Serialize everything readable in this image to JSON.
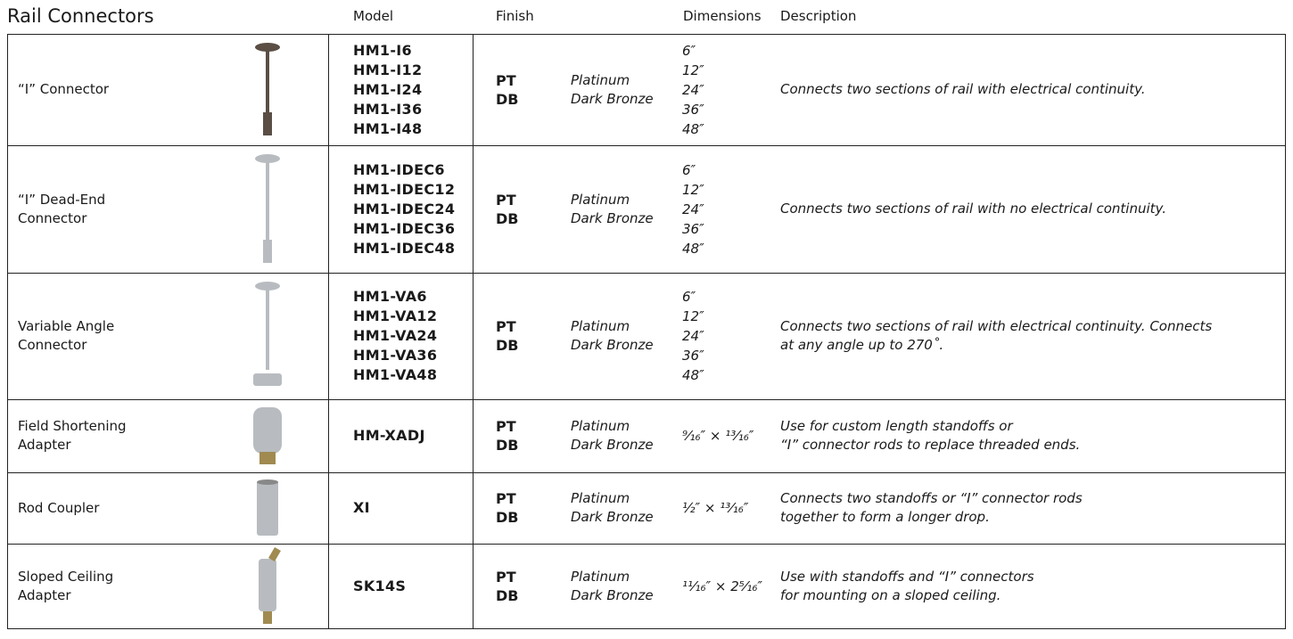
{
  "header": {
    "title": "Rail Connectors",
    "columns": [
      "Model",
      "Finish",
      "Dimensions",
      "Description"
    ]
  },
  "rows": [
    {
      "name": [
        "“I” Connector"
      ],
      "models": [
        "HM1-I6",
        "HM1-I12",
        "HM1-I24",
        "HM1-I36",
        "HM1-I48"
      ],
      "finish_codes": [
        "PT",
        "DB"
      ],
      "finish_names": [
        "Platinum",
        "Dark Bronze"
      ],
      "dimensions": [
        "6″",
        "12″",
        "24″",
        "36″",
        "48″"
      ],
      "description": [
        "Connects two sections of rail with electrical continuity."
      ]
    },
    {
      "name": [
        "“I” Dead-End",
        "Connector"
      ],
      "models": [
        "HM1-IDEC6",
        "HM1-IDEC12",
        "HM1-IDEC24",
        "HM1-IDEC36",
        "HM1-IDEC48"
      ],
      "finish_codes": [
        "PT",
        "DB"
      ],
      "finish_names": [
        "Platinum",
        "Dark Bronze"
      ],
      "dimensions": [
        "6″",
        "12″",
        "24″",
        "36″",
        "48″"
      ],
      "description": [
        "Connects two sections of rail with no electrical continuity."
      ]
    },
    {
      "name": [
        "Variable Angle",
        "Connector"
      ],
      "models": [
        "HM1-VA6",
        "HM1-VA12",
        "HM1-VA24",
        "HM1-VA36",
        "HM1-VA48"
      ],
      "finish_codes": [
        "PT",
        "DB"
      ],
      "finish_names": [
        "Platinum",
        "Dark Bronze"
      ],
      "dimensions": [
        "6″",
        "12″",
        "24″",
        "36″",
        "48″"
      ],
      "description": [
        "Connects two sections of rail with electrical continuity. Connects",
        "at any angle up to 270˚."
      ]
    },
    {
      "name": [
        "Field Shortening",
        "Adapter"
      ],
      "models": [
        "HM-XADJ"
      ],
      "finish_codes": [
        "PT",
        "DB"
      ],
      "finish_names": [
        "Platinum",
        "Dark Bronze"
      ],
      "dimensions": [
        "⁹⁄₁₆″ × ¹³⁄₁₆″"
      ],
      "description": [
        "Use for custom length standoffs or",
        "“I” connector rods to replace threaded ends."
      ]
    },
    {
      "name": [
        "Rod Coupler"
      ],
      "models": [
        "XI"
      ],
      "finish_codes": [
        "PT",
        "DB"
      ],
      "finish_names": [
        "Platinum",
        "Dark Bronze"
      ],
      "dimensions": [
        "½″ × ¹³⁄₁₆″"
      ],
      "description": [
        "Connects two standoffs or “I” connector rods",
        "together to form a longer drop."
      ]
    },
    {
      "name": [
        "Sloped Ceiling",
        "Adapter"
      ],
      "models": [
        "SK14S"
      ],
      "finish_codes": [
        "PT",
        "DB"
      ],
      "finish_names": [
        "Platinum",
        "Dark Bronze"
      ],
      "dimensions": [
        "¹¹⁄₁₆″ × 2⁵⁄₁₆″"
      ],
      "description": [
        "Use with standoffs and “I” connectors",
        "for mounting on a sloped ceiling."
      ]
    }
  ]
}
